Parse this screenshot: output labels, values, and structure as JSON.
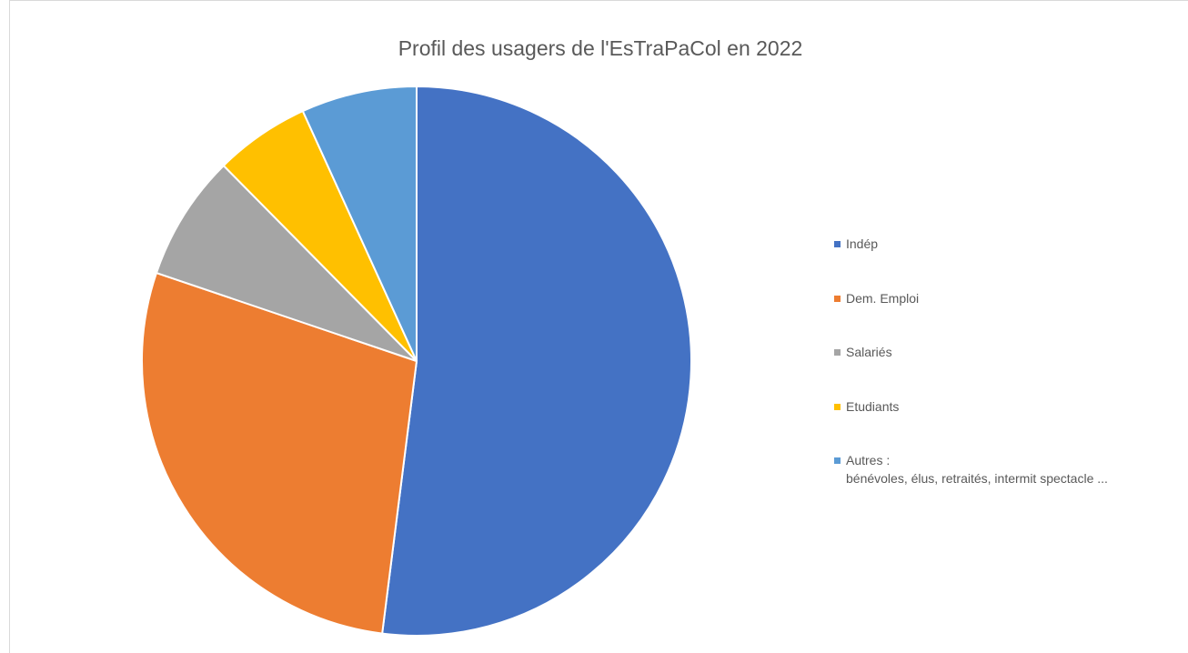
{
  "chart_data": {
    "type": "pie",
    "title": "Profil des usagers de l'EsTraPaCol en 2022",
    "categories": [
      "Indép",
      "Dem. Emploi",
      "Salariés",
      "Etudiants",
      "Autres :\nbénévoles, élus, retraités, intermit spectacle ..."
    ],
    "values": [
      52,
      28.2,
      7.4,
      5.6,
      6.8
    ],
    "colors": [
      "#4472c4",
      "#ed7d31",
      "#a5a5a5",
      "#ffc000",
      "#5b9bd5"
    ],
    "legend": "right"
  }
}
